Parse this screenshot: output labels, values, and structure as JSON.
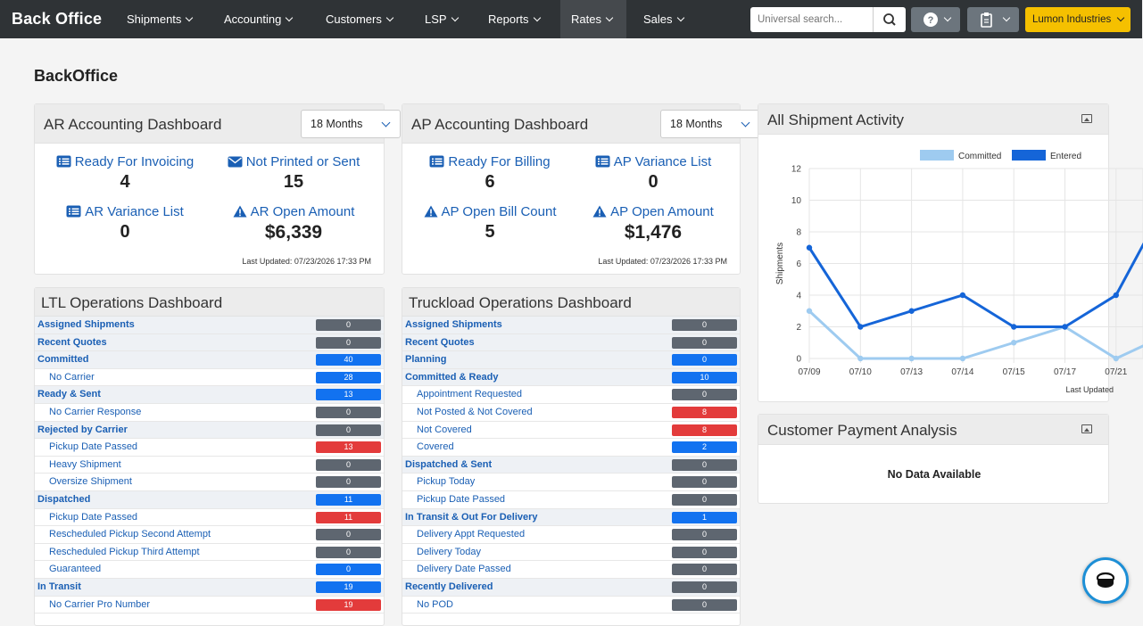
{
  "nav": {
    "brand": "Back Office",
    "items": [
      {
        "label": "Shipments"
      },
      {
        "label": "Accounting"
      },
      {
        "label": "Customers"
      },
      {
        "label": "LSP"
      },
      {
        "label": "Reports"
      },
      {
        "label": "Rates"
      },
      {
        "label": "Sales"
      }
    ],
    "search_placeholder": "Universal search...",
    "company": "Lumon Industries"
  },
  "page_title": "BackOffice",
  "ar": {
    "title": "AR Accounting Dashboard",
    "period": "18 Months",
    "stats": [
      {
        "label": "Ready For Invoicing",
        "value": "4",
        "icon": "list-icon"
      },
      {
        "label": "Not Printed or Sent",
        "value": "15",
        "icon": "envelope-icon"
      },
      {
        "label": "AR Variance List",
        "value": "0",
        "icon": "list-icon"
      },
      {
        "label": "AR Open Amount",
        "value": "$6,339",
        "icon": "warning-icon"
      }
    ],
    "updated": "Last Updated: 07/23/2026 17:33 PM"
  },
  "ap": {
    "title": "AP Accounting Dashboard",
    "period": "18 Months",
    "stats": [
      {
        "label": "Ready For Billing",
        "value": "6",
        "icon": "list-icon"
      },
      {
        "label": "AP Variance List",
        "value": "0",
        "icon": "list-icon"
      },
      {
        "label": "AP Open Bill Count",
        "value": "5",
        "icon": "warning-icon"
      },
      {
        "label": "AP Open Amount",
        "value": "$1,476",
        "icon": "warning-icon"
      }
    ],
    "updated": "Last Updated: 07/23/2026 17:33 PM"
  },
  "ltl": {
    "title": "LTL Operations Dashboard",
    "rows": [
      {
        "label": "Assigned Shipments",
        "value": "0",
        "level": "parent",
        "color": "gray"
      },
      {
        "label": "Recent Quotes",
        "value": "0",
        "level": "parent",
        "color": "gray"
      },
      {
        "label": "Committed",
        "value": "40",
        "level": "parent",
        "color": "blue"
      },
      {
        "label": "No Carrier",
        "value": "28",
        "level": "child",
        "color": "blue"
      },
      {
        "label": "Ready & Sent",
        "value": "13",
        "level": "parent",
        "color": "blue"
      },
      {
        "label": "No Carrier Response",
        "value": "0",
        "level": "child",
        "color": "gray"
      },
      {
        "label": "Rejected by Carrier",
        "value": "0",
        "level": "parent",
        "color": "gray"
      },
      {
        "label": "Pickup Date Passed",
        "value": "13",
        "level": "child",
        "color": "red"
      },
      {
        "label": "Heavy Shipment",
        "value": "0",
        "level": "child",
        "color": "gray"
      },
      {
        "label": "Oversize Shipment",
        "value": "0",
        "level": "child",
        "color": "gray"
      },
      {
        "label": "Dispatched",
        "value": "11",
        "level": "parent",
        "color": "blue"
      },
      {
        "label": "Pickup Date Passed",
        "value": "11",
        "level": "child",
        "color": "red"
      },
      {
        "label": "Rescheduled Pickup Second Attempt",
        "value": "0",
        "level": "child",
        "color": "gray"
      },
      {
        "label": "Rescheduled Pickup Third Attempt",
        "value": "0",
        "level": "child",
        "color": "gray"
      },
      {
        "label": "Guaranteed",
        "value": "0",
        "level": "child",
        "color": "blue"
      },
      {
        "label": "In Transit",
        "value": "19",
        "level": "parent",
        "color": "blue"
      },
      {
        "label": "No Carrier Pro Number",
        "value": "19",
        "level": "child",
        "color": "red"
      }
    ]
  },
  "tl": {
    "title": "Truckload Operations Dashboard",
    "rows": [
      {
        "label": "Assigned Shipments",
        "value": "0",
        "level": "parent",
        "color": "gray"
      },
      {
        "label": "Recent Quotes",
        "value": "0",
        "level": "parent",
        "color": "gray"
      },
      {
        "label": "Planning",
        "value": "0",
        "level": "parent",
        "color": "blue"
      },
      {
        "label": "Committed & Ready",
        "value": "10",
        "level": "parent",
        "color": "blue"
      },
      {
        "label": "Appointment Requested",
        "value": "0",
        "level": "child",
        "color": "gray"
      },
      {
        "label": "Not Posted & Not Covered",
        "value": "8",
        "level": "child",
        "color": "red"
      },
      {
        "label": "Not Covered",
        "value": "8",
        "level": "child",
        "color": "red"
      },
      {
        "label": "Covered",
        "value": "2",
        "level": "child",
        "color": "blue"
      },
      {
        "label": "Dispatched & Sent",
        "value": "0",
        "level": "parent",
        "color": "gray"
      },
      {
        "label": "Pickup Today",
        "value": "0",
        "level": "child",
        "color": "gray"
      },
      {
        "label": "Pickup Date Passed",
        "value": "0",
        "level": "child",
        "color": "gray"
      },
      {
        "label": "In Transit & Out For Delivery",
        "value": "1",
        "level": "parent",
        "color": "blue"
      },
      {
        "label": "Delivery Appt Requested",
        "value": "0",
        "level": "child",
        "color": "gray"
      },
      {
        "label": "Delivery Today",
        "value": "0",
        "level": "child",
        "color": "gray"
      },
      {
        "label": "Delivery Date Passed",
        "value": "0",
        "level": "child",
        "color": "gray"
      },
      {
        "label": "Recently Delivered",
        "value": "0",
        "level": "parent",
        "color": "gray"
      },
      {
        "label": "No POD",
        "value": "0",
        "level": "child",
        "color": "gray"
      }
    ]
  },
  "activity": {
    "title": "All Shipment Activity",
    "updated": "Last Updated"
  },
  "payment": {
    "title": "Customer Payment Analysis",
    "empty": "No Data Available"
  },
  "colors": {
    "gray": "#5e6670",
    "blue": "#1272f0",
    "red": "#e33b3b",
    "committed": "#9ecbf0",
    "entered": "#1565d8"
  },
  "chart_data": {
    "type": "line",
    "x": [
      "07/09",
      "07/10",
      "07/13",
      "07/14",
      "07/15",
      "07/17",
      "07/21"
    ],
    "series": [
      {
        "name": "Committed",
        "values": [
          3,
          0,
          0,
          0,
          1,
          2,
          0
        ]
      },
      {
        "name": "Entered",
        "values": [
          7,
          2,
          3,
          4,
          2,
          2,
          4
        ]
      }
    ],
    "ylabel": "Shipments",
    "ylim": [
      0,
      12
    ],
    "yticks": [
      0,
      2,
      4,
      6,
      8,
      10,
      12
    ],
    "grid": true,
    "legend": "top"
  }
}
